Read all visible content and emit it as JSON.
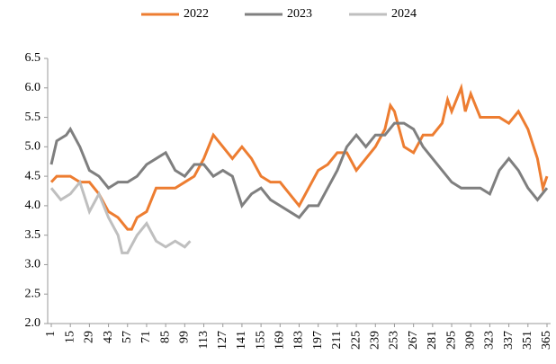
{
  "chart_data": {
    "type": "line",
    "xlim": [
      1,
      365
    ],
    "xticks": [
      1,
      15,
      29,
      43,
      57,
      71,
      85,
      99,
      113,
      127,
      141,
      155,
      169,
      183,
      197,
      211,
      225,
      239,
      253,
      267,
      281,
      295,
      309,
      323,
      337,
      351,
      365
    ],
    "ylim": [
      2,
      6.5
    ],
    "yticks": [
      {
        "value": 2,
        "label": "2.0"
      },
      2.5,
      {
        "value": 3,
        "label": "3.0"
      },
      3.5,
      {
        "value": 4,
        "label": "4.0"
      },
      4.5,
      {
        "value": 5,
        "label": "5.0"
      },
      5.5,
      {
        "value": 6,
        "label": "6.0"
      },
      6.5
    ],
    "grid": false,
    "legend": "top",
    "series": [
      {
        "name": "2022",
        "color": "#ed7d31",
        "x": [
          1,
          5,
          15,
          22,
          29,
          36,
          43,
          50,
          57,
          60,
          64,
          71,
          78,
          85,
          92,
          99,
          106,
          113,
          120,
          127,
          134,
          141,
          148,
          155,
          162,
          169,
          176,
          183,
          190,
          197,
          204,
          211,
          218,
          225,
          232,
          239,
          246,
          250,
          253,
          260,
          267,
          274,
          281,
          288,
          292,
          295,
          302,
          305,
          309,
          316,
          323,
          330,
          337,
          344,
          351,
          358,
          362,
          365
        ],
        "values": [
          4.4,
          4.5,
          4.5,
          4.4,
          4.4,
          4.2,
          3.9,
          3.8,
          3.6,
          3.6,
          3.8,
          3.9,
          4.3,
          4.3,
          4.3,
          4.4,
          4.5,
          4.8,
          5.2,
          5.0,
          4.8,
          5.0,
          4.8,
          4.5,
          4.4,
          4.4,
          4.2,
          4.0,
          4.3,
          4.6,
          4.7,
          4.9,
          4.9,
          4.6,
          4.8,
          5.0,
          5.3,
          5.7,
          5.6,
          5.0,
          4.9,
          5.2,
          5.2,
          5.4,
          5.8,
          5.6,
          6.0,
          5.6,
          5.9,
          5.5,
          5.5,
          5.5,
          5.4,
          5.6,
          5.3,
          4.8,
          4.3,
          4.5
        ]
      },
      {
        "name": "2023",
        "color": "#7f7f7f",
        "x": [
          1,
          5,
          12,
          15,
          22,
          29,
          36,
          43,
          50,
          57,
          64,
          71,
          78,
          85,
          92,
          99,
          106,
          113,
          120,
          127,
          134,
          141,
          148,
          155,
          162,
          169,
          176,
          183,
          190,
          197,
          204,
          211,
          218,
          225,
          232,
          239,
          246,
          253,
          260,
          267,
          274,
          281,
          288,
          295,
          302,
          309,
          316,
          323,
          330,
          337,
          344,
          351,
          358,
          365
        ],
        "values": [
          4.7,
          5.1,
          5.2,
          5.3,
          5.0,
          4.6,
          4.5,
          4.3,
          4.4,
          4.4,
          4.5,
          4.7,
          4.8,
          4.9,
          4.6,
          4.5,
          4.7,
          4.7,
          4.5,
          4.6,
          4.5,
          4.0,
          4.2,
          4.3,
          4.1,
          4.0,
          3.9,
          3.8,
          4.0,
          4.0,
          4.3,
          4.6,
          5.0,
          5.2,
          5.0,
          5.2,
          5.2,
          5.4,
          5.4,
          5.3,
          5.0,
          4.8,
          4.6,
          4.4,
          4.3,
          4.3,
          4.3,
          4.2,
          4.6,
          4.8,
          4.6,
          4.3,
          4.1,
          4.3
        ]
      },
      {
        "name": "2024",
        "color": "#bfbfbf",
        "x": [
          1,
          8,
          15,
          22,
          29,
          36,
          43,
          50,
          53,
          57,
          64,
          71,
          78,
          85,
          92,
          99,
          103
        ],
        "values": [
          4.3,
          4.1,
          4.2,
          4.4,
          3.9,
          4.2,
          3.8,
          3.5,
          3.2,
          3.2,
          3.5,
          3.7,
          3.4,
          3.3,
          3.4,
          3.3,
          3.4
        ]
      }
    ]
  }
}
